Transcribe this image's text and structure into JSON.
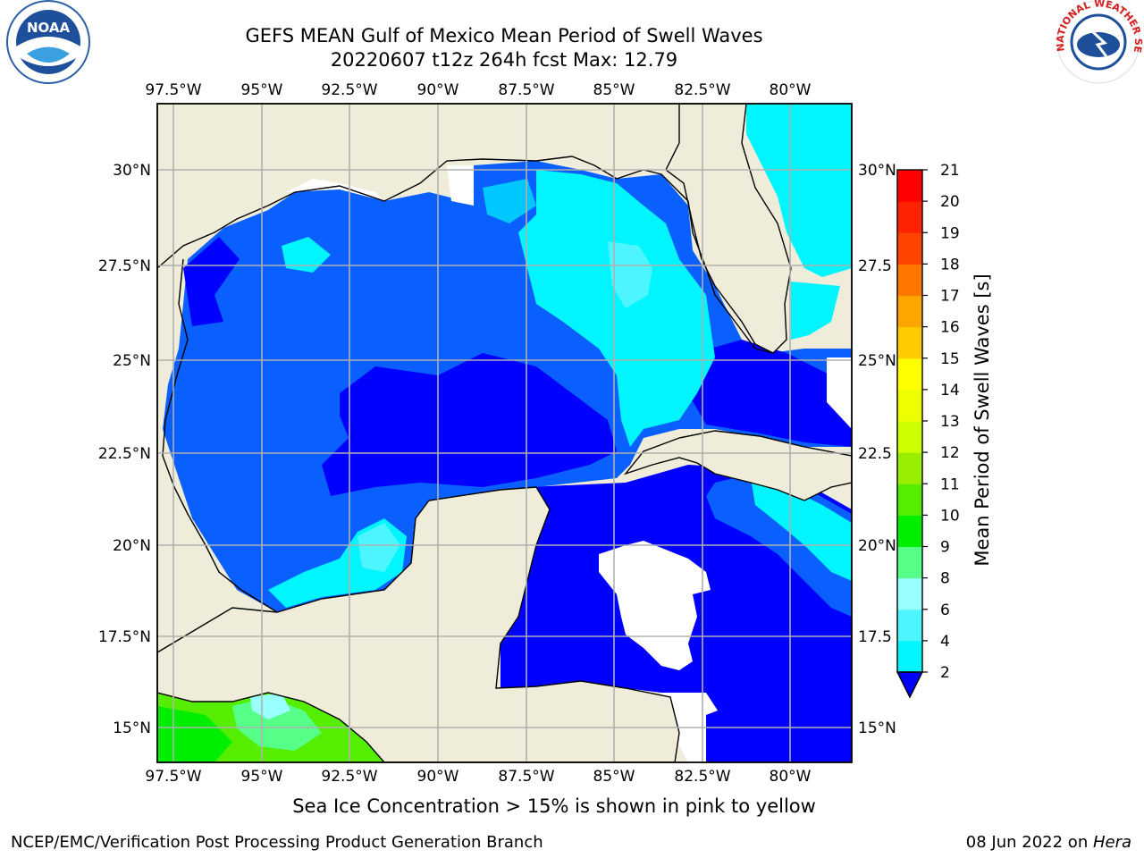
{
  "title": {
    "line1": "GEFS MEAN Gulf of Mexico Mean Period of Swell Waves",
    "line2": "20220607 t12z 264h fcst   Max: 12.79"
  },
  "map": {
    "top_lon_labels": [
      "97.5°W",
      "95°W",
      "92.5°W",
      "90°W",
      "87.5°W",
      "85°W",
      "82.5°W",
      "80°W"
    ],
    "bottom_lon_labels": [
      "97.5°W",
      "95°W",
      "92.5°W",
      "90°W",
      "87.5°W",
      "85°W",
      "82.5°W",
      "80°W"
    ],
    "left_lat_labels": [
      "30°N",
      "27.5°N",
      "25°N",
      "22.5°N",
      "20°N",
      "17.5°N",
      "15°N"
    ],
    "right_lat_labels": [
      "30°N",
      "27.5",
      "25°N",
      "22.5",
      "20°N",
      "17.5",
      "15°N"
    ],
    "colors": {
      "land": "#efedda",
      "no_data": "#ffffff",
      "grid": "#b0b0b0"
    }
  },
  "colorbar": {
    "label": "Mean Period of Swell Waves [s]",
    "ticks": [
      "2",
      "4",
      "6",
      "8",
      "9",
      "10",
      "11",
      "12",
      "13",
      "14",
      "15",
      "16",
      "17",
      "18",
      "19",
      "20",
      "21"
    ],
    "colors": [
      "#0a60ff",
      "#00c8ff",
      "#00f5ff",
      "#4df5ff",
      "#99ffff",
      "#55ff88",
      "#00ee00",
      "#55ee00",
      "#99ee00",
      "#ccff00",
      "#eeff00",
      "#ffff00",
      "#ffcc00",
      "#ffa500",
      "#ff7700",
      "#ff4400",
      "#ff2200",
      "#ff0000"
    ],
    "under_color": "#0000ff"
  },
  "bottom_note": "Sea Ice Concentration > 15% is shown in pink to yellow",
  "footer": {
    "left": "NCEP/EMC/Verification Post Processing Product Generation Branch",
    "right_prefix": "08 Jun 2022 on ",
    "right_host": "Hera"
  }
}
